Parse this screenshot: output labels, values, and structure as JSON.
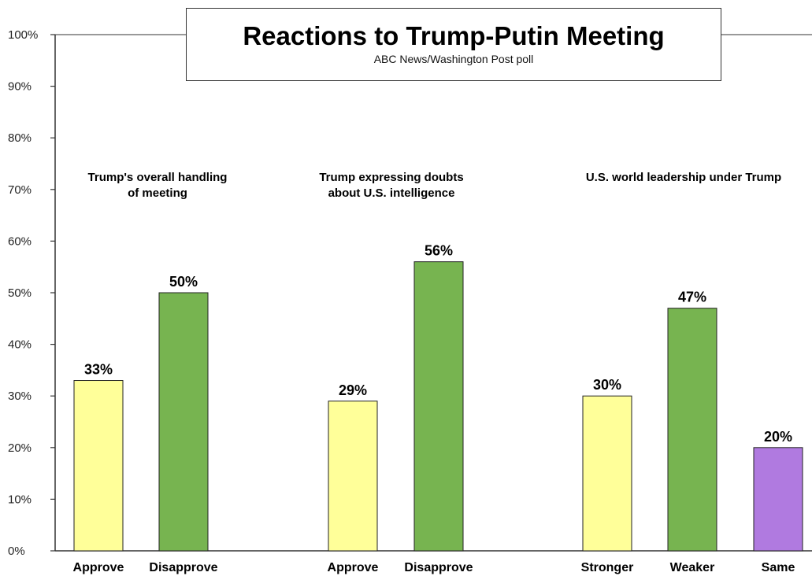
{
  "chart_data": {
    "type": "bar",
    "title": "Reactions to Trump-Putin Meeting",
    "subtitle": "ABC News/Washington  Post poll",
    "ylim": [
      0,
      100
    ],
    "yticks": [
      "0%",
      "10%",
      "20%",
      "30%",
      "40%",
      "50%",
      "60%",
      "70%",
      "80%",
      "90%",
      "100%"
    ],
    "grid": false,
    "colors": {
      "yellow": "#ffff99",
      "green": "#77b450",
      "purple": "#b07ae0",
      "axis": "#333333"
    },
    "groups": [
      {
        "label_lines": [
          "Trump's overall handling",
          "of meeting"
        ],
        "bars": [
          {
            "category": "Approve",
            "value": 33,
            "label": "33%",
            "color": "#ffff99"
          },
          {
            "category": "Disapprove",
            "value": 50,
            "label": "50%",
            "color": "#77b450"
          }
        ]
      },
      {
        "label_lines": [
          "Trump expressing doubts",
          "about U.S. intelligence"
        ],
        "bars": [
          {
            "category": "Approve",
            "value": 29,
            "label": "29%",
            "color": "#ffff99"
          },
          {
            "category": "Disapprove",
            "value": 56,
            "label": "56%",
            "color": "#77b450"
          }
        ]
      },
      {
        "label_lines": [
          "U.S. world leadership under Trump"
        ],
        "bars": [
          {
            "category": "Stronger",
            "value": 30,
            "label": "30%",
            "color": "#ffff99"
          },
          {
            "category": "Weaker",
            "value": 47,
            "label": "47%",
            "color": "#77b450"
          },
          {
            "category": "Same",
            "value": 20,
            "label": "20%",
            "color": "#b07ae0"
          }
        ]
      }
    ]
  }
}
